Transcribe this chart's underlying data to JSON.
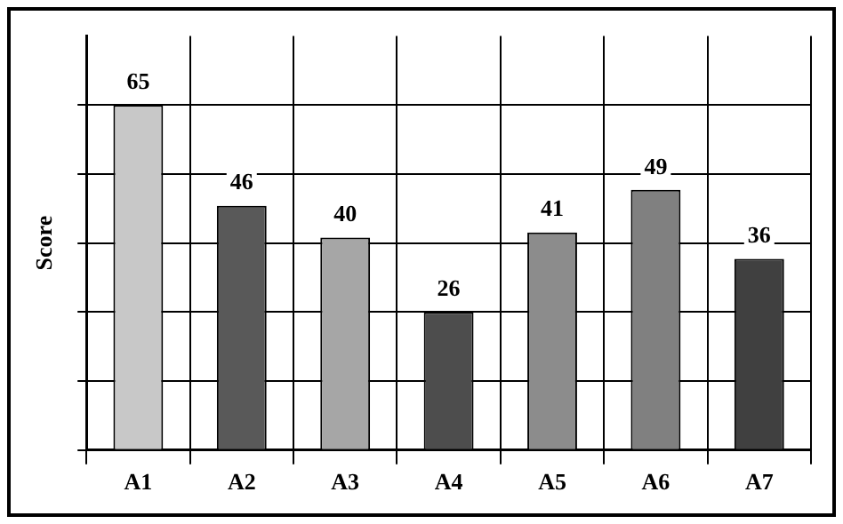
{
  "chart_data": {
    "type": "bar",
    "ylabel": "Score",
    "categories": [
      "A1",
      "A2",
      "A3",
      "A4",
      "A5",
      "A6",
      "A7"
    ],
    "values": [
      65,
      46,
      40,
      26,
      41,
      49,
      36
    ],
    "colors": [
      "#c8c8c8",
      "#595959",
      "#a6a6a6",
      "#4d4d4d",
      "#8c8c8c",
      "#808080",
      "#404040"
    ],
    "ylim": [
      0,
      78
    ],
    "grid": true,
    "tick_labels": "x",
    "data_labels": true
  }
}
